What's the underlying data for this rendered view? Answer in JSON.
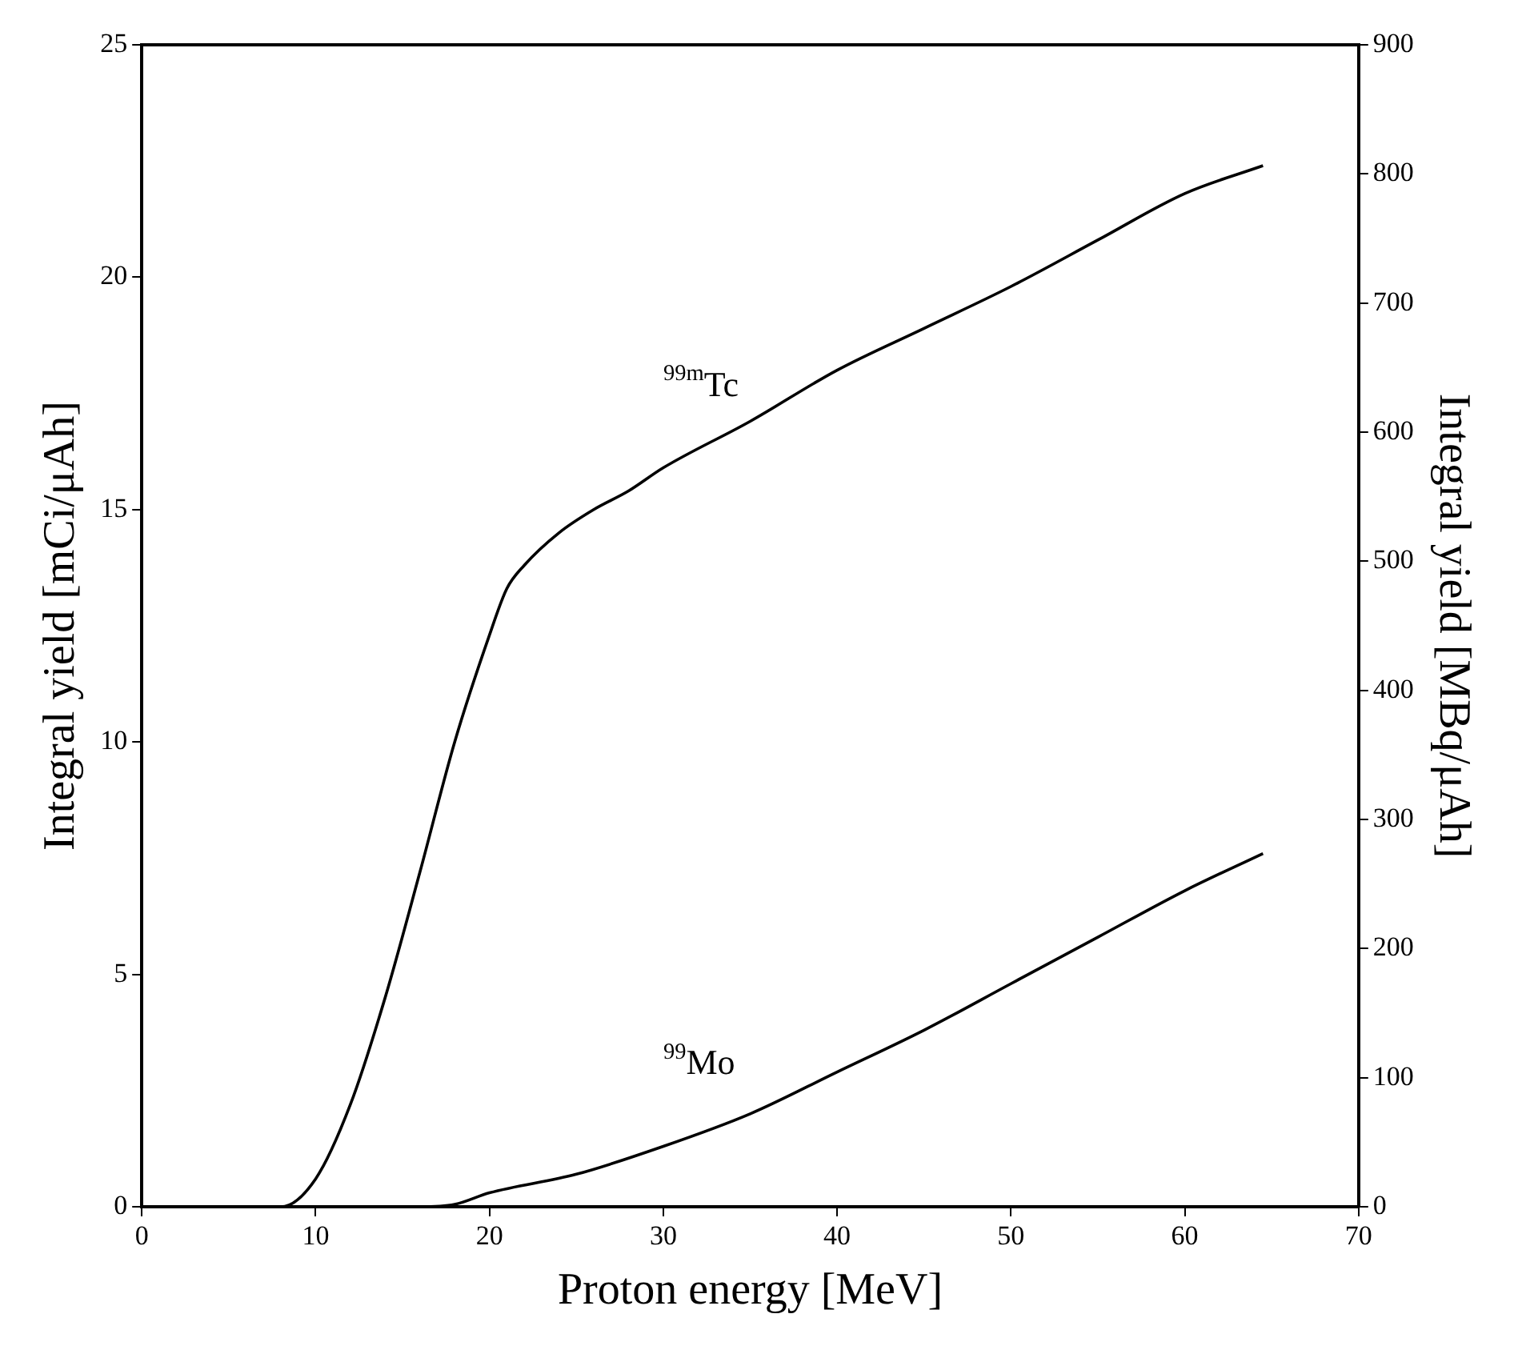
{
  "chart_data": {
    "type": "line",
    "xlabel": "Proton energy [MeV]",
    "ylabel": "Integral yield [mCi/μAh]",
    "y2label": "Integral yield [MBq/μAh]",
    "xlim": [
      0,
      70
    ],
    "xticks": [
      0,
      10,
      20,
      30,
      40,
      50,
      60,
      70
    ],
    "ylim": [
      0,
      25
    ],
    "yticks": [
      0,
      5,
      10,
      15,
      20,
      25
    ],
    "y2lim": [
      0,
      900
    ],
    "y2ticks": [
      0,
      100,
      200,
      300,
      400,
      500,
      600,
      700,
      800,
      900
    ],
    "grid": false,
    "legend": false,
    "marker": "none",
    "line_style": "solid",
    "series": [
      {
        "name": "$^{99m}$Tc",
        "color": "#000000",
        "x": [
          0,
          8,
          10,
          12,
          14,
          16,
          18,
          20,
          21,
          22,
          24,
          26,
          28,
          30,
          35,
          40,
          45,
          50,
          55,
          60,
          64.5
        ],
        "values": [
          0,
          0,
          0.6,
          2.2,
          4.5,
          7.2,
          10,
          12.3,
          13.3,
          13.8,
          14.5,
          15,
          15.4,
          15.9,
          16.9,
          18,
          18.9,
          19.8,
          20.8,
          21.8,
          22.4
        ]
      },
      {
        "name": "$^{99}$Mo",
        "color": "#000000",
        "x": [
          0,
          16,
          18,
          20,
          25,
          30,
          35,
          40,
          45,
          50,
          55,
          60,
          64.5
        ],
        "values": [
          0,
          0,
          0.05,
          0.3,
          0.7,
          1.3,
          2,
          2.9,
          3.8,
          4.8,
          5.8,
          6.8,
          7.6
        ]
      }
    ]
  }
}
